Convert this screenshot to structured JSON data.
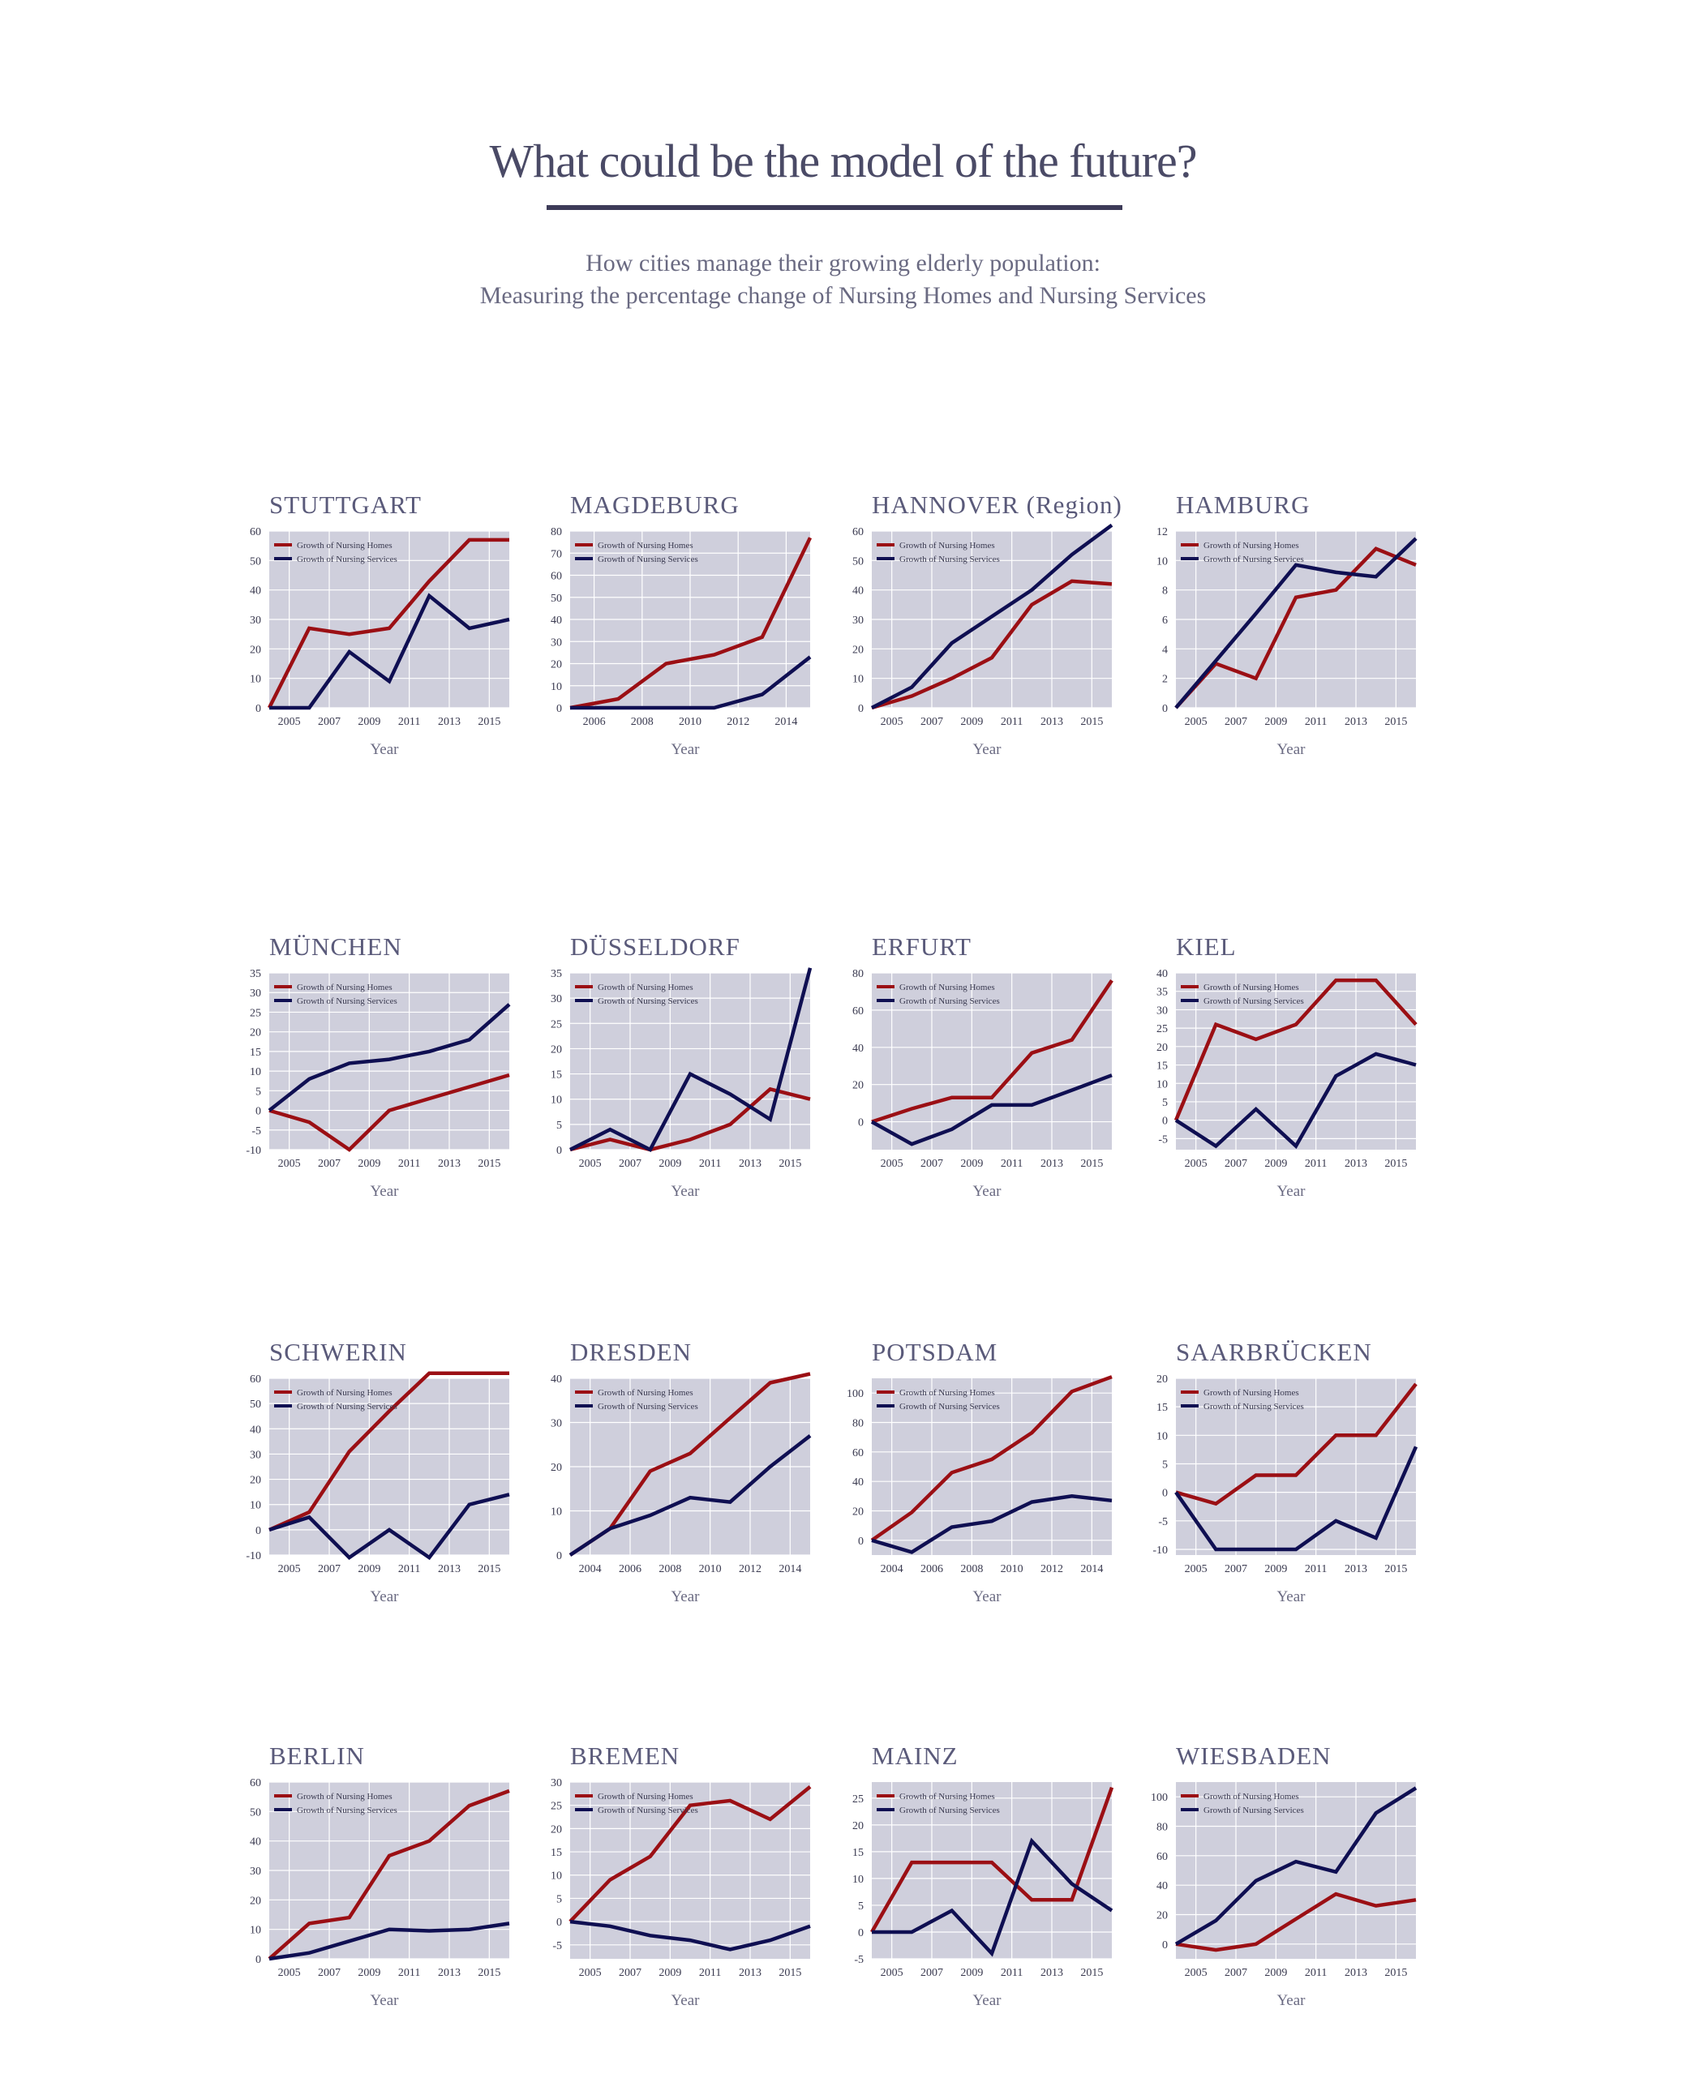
{
  "page": {
    "title": "What could be the model of the future?",
    "subtitle_line1": "How cities manage their growing elderly population:",
    "subtitle_line2": "Measuring the percentage change of Nursing Homes and Nursing Services"
  },
  "colors": {
    "nursing_homes": "#9b0f14",
    "nursing_services": "#0f0f52",
    "plot_bg": "#cfcfdc",
    "grid": "#ffffff"
  },
  "chart_data": [
    {
      "type": "line",
      "title": "STUTTGART",
      "xlabel": "Year",
      "xlim": [
        2004,
        2016
      ],
      "ylim": [
        0,
        60
      ],
      "xticks": [
        2005,
        2007,
        2009,
        2011,
        2013,
        2015
      ],
      "yticks": [
        0,
        10,
        20,
        30,
        40,
        50,
        60
      ],
      "series": [
        {
          "name": "Growth of Nursing Homes",
          "x": [
            2004,
            2006,
            2008,
            2010,
            2012,
            2014,
            2016
          ],
          "y": [
            0,
            27,
            25,
            27,
            43,
            57,
            57
          ]
        },
        {
          "name": "Growth of Nursing Services",
          "x": [
            2004,
            2006,
            2008,
            2010,
            2012,
            2014,
            2016
          ],
          "y": [
            0,
            0,
            19,
            9,
            38,
            27,
            30
          ]
        }
      ]
    },
    {
      "type": "line",
      "title": "MAGDEBURG",
      "xlabel": "Year",
      "xlim": [
        2005,
        2015
      ],
      "ylim": [
        0,
        80
      ],
      "xticks": [
        2006,
        2008,
        2010,
        2012,
        2014
      ],
      "yticks": [
        0,
        10,
        20,
        30,
        40,
        50,
        60,
        70,
        80
      ],
      "series": [
        {
          "name": "Growth of Nursing Homes",
          "x": [
            2005,
            2007,
            2009,
            2011,
            2013,
            2015
          ],
          "y": [
            0,
            4,
            20,
            24,
            32,
            77
          ]
        },
        {
          "name": "Growth of Nursing Services",
          "x": [
            2005,
            2007,
            2009,
            2011,
            2013,
            2015
          ],
          "y": [
            0,
            0,
            0,
            0,
            6,
            23
          ]
        }
      ]
    },
    {
      "type": "line",
      "title": "HANNOVER (Region)",
      "xlabel": "Year",
      "xlim": [
        2004,
        2016
      ],
      "ylim": [
        0,
        60
      ],
      "xticks": [
        2005,
        2007,
        2009,
        2011,
        2013,
        2015
      ],
      "yticks": [
        0,
        10,
        20,
        30,
        40,
        50,
        60
      ],
      "series": [
        {
          "name": "Growth of Nursing Homes",
          "x": [
            2004,
            2006,
            2008,
            2010,
            2012,
            2014,
            2016
          ],
          "y": [
            0,
            4,
            10,
            17,
            35,
            43,
            42
          ]
        },
        {
          "name": "Growth of Nursing Services",
          "x": [
            2004,
            2006,
            2008,
            2010,
            2012,
            2014,
            2016
          ],
          "y": [
            0,
            7,
            22,
            31,
            40,
            52,
            62
          ]
        }
      ]
    },
    {
      "type": "line",
      "title": "HAMBURG",
      "xlabel": "Year",
      "xlim": [
        2004,
        2016
      ],
      "ylim": [
        0,
        12
      ],
      "xticks": [
        2005,
        2007,
        2009,
        2011,
        2013,
        2015
      ],
      "yticks": [
        0,
        2,
        4,
        6,
        8,
        10,
        12
      ],
      "series": [
        {
          "name": "Growth of Nursing Homes",
          "x": [
            2004,
            2006,
            2008,
            2010,
            2012,
            2014,
            2016
          ],
          "y": [
            0,
            3,
            2,
            7.5,
            8,
            10.8,
            9.7
          ]
        },
        {
          "name": "Growth of Nursing Services",
          "x": [
            2004,
            2006,
            2008,
            2010,
            2012,
            2014,
            2016
          ],
          "y": [
            0,
            3.2,
            6.4,
            9.7,
            9.2,
            8.9,
            11.5
          ]
        }
      ]
    },
    {
      "type": "line",
      "title": "MÜNCHEN",
      "xlabel": "Year",
      "xlim": [
        2004,
        2016
      ],
      "ylim": [
        -10,
        35
      ],
      "xticks": [
        2005,
        2007,
        2009,
        2011,
        2013,
        2015
      ],
      "yticks": [
        -10,
        -5,
        0,
        5,
        10,
        15,
        20,
        25,
        30,
        35
      ],
      "series": [
        {
          "name": "Growth of Nursing Homes",
          "x": [
            2004,
            2006,
            2008,
            2010,
            2012,
            2014,
            2016
          ],
          "y": [
            0,
            -3,
            -10,
            0,
            3,
            6,
            9
          ]
        },
        {
          "name": "Growth of Nursing Services",
          "x": [
            2004,
            2006,
            2008,
            2010,
            2012,
            2014,
            2016
          ],
          "y": [
            0,
            8,
            12,
            13,
            15,
            18,
            27
          ]
        }
      ]
    },
    {
      "type": "line",
      "title": "DÜSSELDORF",
      "xlabel": "Year",
      "xlim": [
        2004,
        2016
      ],
      "ylim": [
        0,
        35
      ],
      "xticks": [
        2005,
        2007,
        2009,
        2011,
        2013,
        2015
      ],
      "yticks": [
        0,
        5,
        10,
        15,
        20,
        25,
        30,
        35
      ],
      "series": [
        {
          "name": "Growth of Nursing Homes",
          "x": [
            2004,
            2006,
            2008,
            2010,
            2012,
            2014,
            2016
          ],
          "y": [
            0,
            2,
            0,
            2,
            5,
            12,
            10
          ]
        },
        {
          "name": "Growth of Nursing Services",
          "x": [
            2004,
            2006,
            2008,
            2010,
            2012,
            2014,
            2016
          ],
          "y": [
            0,
            4,
            0,
            15,
            11,
            6,
            36
          ]
        }
      ]
    },
    {
      "type": "line",
      "title": "ERFURT",
      "xlabel": "Year",
      "xlim": [
        2004,
        2016
      ],
      "ylim": [
        -15,
        80
      ],
      "xticks": [
        2005,
        2007,
        2009,
        2011,
        2013,
        2015
      ],
      "yticks": [
        0,
        20,
        40,
        60,
        80
      ],
      "series": [
        {
          "name": "Growth of Nursing Homes",
          "x": [
            2004,
            2006,
            2008,
            2010,
            2012,
            2014,
            2016
          ],
          "y": [
            0,
            7,
            13,
            13,
            37,
            44,
            76
          ]
        },
        {
          "name": "Growth of Nursing Services",
          "x": [
            2004,
            2006,
            2008,
            2010,
            2012,
            2014,
            2016
          ],
          "y": [
            0,
            -12,
            -4,
            9,
            9,
            17,
            25
          ]
        }
      ]
    },
    {
      "type": "line",
      "title": "KIEL",
      "xlabel": "Year",
      "xlim": [
        2004,
        2016
      ],
      "ylim": [
        -8,
        40
      ],
      "xticks": [
        2005,
        2007,
        2009,
        2011,
        2013,
        2015
      ],
      "yticks": [
        -5,
        0,
        5,
        10,
        15,
        20,
        25,
        30,
        35,
        40
      ],
      "series": [
        {
          "name": "Growth of Nursing Homes",
          "x": [
            2004,
            2006,
            2008,
            2010,
            2012,
            2014,
            2016
          ],
          "y": [
            0,
            26,
            22,
            26,
            38,
            38,
            26
          ]
        },
        {
          "name": "Growth of Nursing Services",
          "x": [
            2004,
            2006,
            2008,
            2010,
            2012,
            2014,
            2016
          ],
          "y": [
            0,
            -7,
            3,
            -7,
            12,
            18,
            15
          ]
        }
      ]
    },
    {
      "type": "line",
      "title": "SCHWERIN",
      "xlabel": "Year",
      "xlim": [
        2004,
        2016
      ],
      "ylim": [
        -10,
        60
      ],
      "xticks": [
        2005,
        2007,
        2009,
        2011,
        2013,
        2015
      ],
      "yticks": [
        -10,
        0,
        10,
        20,
        30,
        40,
        50,
        60
      ],
      "series": [
        {
          "name": "Growth of Nursing Homes",
          "x": [
            2004,
            2006,
            2008,
            2010,
            2012,
            2014,
            2016
          ],
          "y": [
            0,
            7,
            31,
            47,
            62,
            62,
            62
          ]
        },
        {
          "name": "Growth of Nursing Services",
          "x": [
            2004,
            2006,
            2008,
            2010,
            2012,
            2014,
            2016
          ],
          "y": [
            0,
            5,
            -11,
            0,
            -11,
            10,
            14
          ]
        }
      ]
    },
    {
      "type": "line",
      "title": "DRESDEN",
      "xlabel": "Year",
      "xlim": [
        2003,
        2015
      ],
      "ylim": [
        0,
        40
      ],
      "xticks": [
        2004,
        2006,
        2008,
        2010,
        2012,
        2014
      ],
      "yticks": [
        0,
        10,
        20,
        30,
        40
      ],
      "series": [
        {
          "name": "Growth of Nursing Homes",
          "x": [
            2003,
            2005,
            2007,
            2009,
            2011,
            2013,
            2015
          ],
          "y": [
            0,
            6,
            19,
            23,
            31,
            39,
            41
          ]
        },
        {
          "name": "Growth of Nursing Services",
          "x": [
            2003,
            2005,
            2007,
            2009,
            2011,
            2013,
            2015
          ],
          "y": [
            0,
            6,
            9,
            13,
            12,
            20,
            27
          ]
        }
      ]
    },
    {
      "type": "line",
      "title": "POTSDAM",
      "xlabel": "Year",
      "xlim": [
        2003,
        2015
      ],
      "ylim": [
        -10,
        110
      ],
      "xticks": [
        2004,
        2006,
        2008,
        2010,
        2012,
        2014
      ],
      "yticks": [
        0,
        20,
        40,
        60,
        80,
        100
      ],
      "series": [
        {
          "name": "Growth of Nursing Homes",
          "x": [
            2003,
            2005,
            2007,
            2009,
            2011,
            2013,
            2015
          ],
          "y": [
            0,
            19,
            46,
            55,
            73,
            101,
            111
          ]
        },
        {
          "name": "Growth of Nursing Services",
          "x": [
            2003,
            2005,
            2007,
            2009,
            2011,
            2013,
            2015
          ],
          "y": [
            0,
            -8,
            9,
            13,
            26,
            30,
            27
          ]
        }
      ]
    },
    {
      "type": "line",
      "title": "SAARBRÜCKEN",
      "xlabel": "Year",
      "xlim": [
        2004,
        2016
      ],
      "ylim": [
        -11,
        20
      ],
      "xticks": [
        2005,
        2007,
        2009,
        2011,
        2013,
        2015
      ],
      "yticks": [
        -10,
        -5,
        0,
        5,
        10,
        15,
        20
      ],
      "series": [
        {
          "name": "Growth of Nursing Homes",
          "x": [
            2004,
            2006,
            2008,
            2010,
            2012,
            2014,
            2016
          ],
          "y": [
            0,
            -2,
            3,
            3,
            10,
            10,
            19
          ]
        },
        {
          "name": "Growth of Nursing Services",
          "x": [
            2004,
            2006,
            2008,
            2010,
            2012,
            2014,
            2016
          ],
          "y": [
            0,
            -10,
            -10,
            -10,
            -5,
            -8,
            8
          ]
        }
      ]
    },
    {
      "type": "line",
      "title": "BERLIN",
      "xlabel": "Year",
      "xlim": [
        2004,
        2016
      ],
      "ylim": [
        0,
        60
      ],
      "xticks": [
        2005,
        2007,
        2009,
        2011,
        2013,
        2015
      ],
      "yticks": [
        0,
        10,
        20,
        30,
        40,
        50,
        60
      ],
      "series": [
        {
          "name": "Growth of Nursing Homes",
          "x": [
            2004,
            2006,
            2008,
            2010,
            2012,
            2014,
            2016
          ],
          "y": [
            0,
            12,
            14,
            35,
            40,
            52,
            57
          ]
        },
        {
          "name": "Growth of Nursing Services",
          "x": [
            2004,
            2006,
            2008,
            2010,
            2012,
            2014,
            2016
          ],
          "y": [
            0,
            2,
            6,
            10,
            9.5,
            10,
            12
          ]
        }
      ]
    },
    {
      "type": "line",
      "title": "BREMEN",
      "xlabel": "Year",
      "xlim": [
        2004,
        2016
      ],
      "ylim": [
        -8,
        30
      ],
      "xticks": [
        2005,
        2007,
        2009,
        2011,
        2013,
        2015
      ],
      "yticks": [
        -5,
        0,
        5,
        10,
        15,
        20,
        25,
        30
      ],
      "series": [
        {
          "name": "Growth of Nursing Homes",
          "x": [
            2004,
            2006,
            2008,
            2010,
            2012,
            2014,
            2016
          ],
          "y": [
            0,
            9,
            14,
            25,
            26,
            22,
            29
          ]
        },
        {
          "name": "Growth of Nursing Services",
          "x": [
            2004,
            2006,
            2008,
            2010,
            2012,
            2014,
            2016
          ],
          "y": [
            0,
            -1,
            -3,
            -4,
            -6,
            -4,
            -1
          ]
        }
      ]
    },
    {
      "type": "line",
      "title": "MAINZ",
      "xlabel": "Year",
      "xlim": [
        2004,
        2016
      ],
      "ylim": [
        -5,
        28
      ],
      "xticks": [
        2005,
        2007,
        2009,
        2011,
        2013,
        2015
      ],
      "yticks": [
        -5,
        0,
        5,
        10,
        15,
        20,
        25
      ],
      "series": [
        {
          "name": "Growth of Nursing Homes",
          "x": [
            2004,
            2006,
            2008,
            2010,
            2012,
            2014,
            2016
          ],
          "y": [
            0,
            13,
            13,
            13,
            6,
            6,
            27
          ]
        },
        {
          "name": "Growth of Nursing Services",
          "x": [
            2004,
            2006,
            2008,
            2010,
            2012,
            2014,
            2016
          ],
          "y": [
            0,
            0,
            4,
            -4,
            17,
            9,
            4
          ]
        }
      ]
    },
    {
      "type": "line",
      "title": "WIESBADEN",
      "xlabel": "Year",
      "xlim": [
        2004,
        2016
      ],
      "ylim": [
        -10,
        110
      ],
      "xticks": [
        2005,
        2007,
        2009,
        2011,
        2013,
        2015
      ],
      "yticks": [
        0,
        20,
        40,
        60,
        80,
        100
      ],
      "series": [
        {
          "name": "Growth of Nursing Homes",
          "x": [
            2004,
            2006,
            2008,
            2010,
            2012,
            2014,
            2016
          ],
          "y": [
            0,
            -4,
            0,
            17,
            34,
            26,
            30
          ]
        },
        {
          "name": "Growth of Nursing Services",
          "x": [
            2004,
            2006,
            2008,
            2010,
            2012,
            2014,
            2016
          ],
          "y": [
            0,
            16,
            43,
            56,
            49,
            89,
            106
          ]
        }
      ]
    }
  ]
}
